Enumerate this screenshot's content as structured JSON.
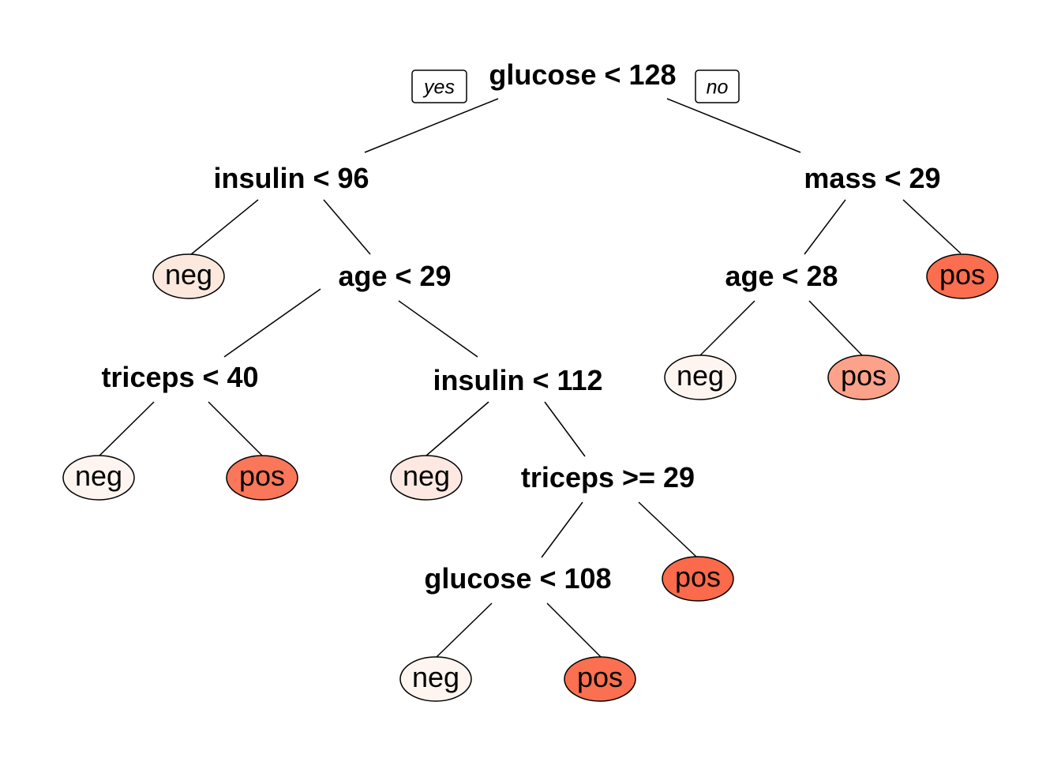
{
  "colors": {
    "background": "#ffffff",
    "line": "#000000",
    "text": "#000000"
  },
  "branch_labels": {
    "yes": "yes",
    "no": "no"
  },
  "nodes": {
    "root": {
      "label": "glucose < 128",
      "type": "split"
    },
    "n_insulin96": {
      "label": "insulin < 96",
      "type": "split"
    },
    "n_mass29": {
      "label": "mass < 29",
      "type": "split"
    },
    "leaf_neg_a": {
      "label": "neg",
      "type": "leaf",
      "fill": "#fde8de"
    },
    "n_age29": {
      "label": "age < 29",
      "type": "split"
    },
    "n_age28": {
      "label": "age < 28",
      "type": "split"
    },
    "leaf_pos_a": {
      "label": "pos",
      "type": "leaf",
      "fill": "#fb6e4f"
    },
    "n_triceps40": {
      "label": "triceps < 40",
      "type": "split"
    },
    "n_insulin112": {
      "label": "insulin < 112",
      "type": "split"
    },
    "leaf_neg_b": {
      "label": "neg",
      "type": "leaf",
      "fill": "#fff5f0"
    },
    "leaf_pos_b": {
      "label": "pos",
      "type": "leaf",
      "fill": "#fca28a"
    },
    "leaf_neg_c": {
      "label": "neg",
      "type": "leaf",
      "fill": "#fff5f0"
    },
    "leaf_pos_c": {
      "label": "pos",
      "type": "leaf",
      "fill": "#fa7759"
    },
    "leaf_neg_d": {
      "label": "neg",
      "type": "leaf",
      "fill": "#fde9e1"
    },
    "n_triceps29": {
      "label": "triceps >= 29",
      "type": "split"
    },
    "n_glucose108": {
      "label": "glucose < 108",
      "type": "split"
    },
    "leaf_pos_d": {
      "label": "pos",
      "type": "leaf",
      "fill": "#fb6a4a"
    },
    "leaf_neg_e": {
      "label": "neg",
      "type": "leaf",
      "fill": "#fff5f0"
    },
    "leaf_pos_e": {
      "label": "pos",
      "type": "leaf",
      "fill": "#fa7050"
    }
  }
}
